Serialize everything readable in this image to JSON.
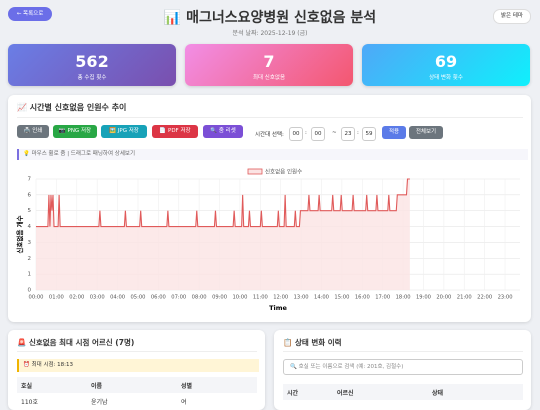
{
  "header": {
    "back_button": "← 목록으로",
    "title": "📊 매그너스요양병원 신호없음 분석",
    "subtitle": "분석 날짜: 2025-12-19 (금)",
    "theme_button": "밝은 테마"
  },
  "stats": [
    {
      "value": 562,
      "label": "총 수집 횟수"
    },
    {
      "value": 7,
      "label": "최대 신호없음"
    },
    {
      "value": 69,
      "label": "상태 변화 횟수"
    }
  ],
  "chart_panel": {
    "title": "📈 시간별 신호없음 인원수 추이",
    "buttons": [
      "🖨️ 인쇄",
      "📷 PNG 저장",
      "🖼️ JPG 저장",
      "📄 PDF 저장",
      "🔍 줌 리셋"
    ],
    "time_range": {
      "label": "시간대 선택:",
      "start_hour": "00",
      "colon": ":",
      "start_minute": "00",
      "separator": "~",
      "end_hour": "23",
      "end_minute": "59"
    },
    "apply_button": "적용",
    "reset_button": "전체보기",
    "hint": "💡 마우스 휠로 줌 | 드래그로 패닝하여 상세보기"
  },
  "chart_data": {
    "type": "line",
    "xlabel": "Time",
    "ylabel": "신호없음 개수",
    "legend": "top",
    "grid": true,
    "x": [
      "00:00",
      "00:35",
      "00:38",
      "00:41",
      "00:44",
      "00:47",
      "00:50",
      "00:53",
      "01:05",
      "01:08",
      "01:11",
      "03:05",
      "03:08",
      "03:11",
      "04:20",
      "04:23",
      "04:26",
      "05:05",
      "05:08",
      "05:11",
      "06:25",
      "06:28",
      "06:31",
      "07:50",
      "07:53",
      "07:56",
      "08:45",
      "08:48",
      "08:51",
      "09:40",
      "09:43",
      "09:46",
      "10:05",
      "10:08",
      "10:11",
      "10:25",
      "10:28",
      "10:31",
      "11:00",
      "11:03",
      "11:06",
      "11:50",
      "11:53",
      "11:56",
      "12:10",
      "12:13",
      "12:16",
      "12:40",
      "12:43",
      "12:46",
      "12:55",
      "12:58",
      "13:20",
      "13:23",
      "13:26",
      "13:50",
      "13:53",
      "13:56",
      "14:30",
      "14:33",
      "14:36",
      "14:55",
      "14:58",
      "15:01",
      "15:30",
      "15:33",
      "15:36",
      "16:10",
      "16:13",
      "16:16",
      "16:40",
      "16:43",
      "16:46",
      "17:15",
      "17:18",
      "17:21",
      "17:40",
      "17:43",
      "18:10",
      "18:13",
      "18:20"
    ],
    "series": [
      {
        "name": "신호없음 인원수",
        "color": "#e05a5a",
        "fill": "#fbe3e3",
        "values": [
          4,
          4,
          6,
          4,
          6,
          5,
          6,
          4,
          4,
          6,
          4,
          4,
          5,
          4,
          4,
          5,
          4,
          4,
          5,
          4,
          4,
          5,
          4,
          4,
          5,
          4,
          4,
          5,
          4,
          4,
          5,
          4,
          4,
          6,
          4,
          4,
          5,
          4,
          4,
          5,
          4,
          4,
          5,
          4,
          4,
          6,
          4,
          4,
          5,
          4,
          4,
          5,
          5,
          6,
          5,
          5,
          6,
          5,
          5,
          6,
          5,
          5,
          6,
          5,
          5,
          6,
          5,
          5,
          6,
          5,
          5,
          6,
          5,
          5,
          6,
          5,
          5,
          6,
          6,
          7,
          7
        ]
      }
    ],
    "xlim": [
      "00:00",
      "23:44"
    ],
    "xticks": [
      "00:00",
      "01:00",
      "02:00",
      "03:00",
      "04:00",
      "05:00",
      "06:00",
      "07:00",
      "08:00",
      "09:00",
      "10:00",
      "11:00",
      "12:00",
      "13:00",
      "14:00",
      "15:00",
      "16:00",
      "17:00",
      "18:00",
      "19:00",
      "20:00",
      "21:00",
      "22:00",
      "23:00"
    ],
    "ylim": [
      0,
      7
    ],
    "yticks": [
      0,
      1,
      2,
      3,
      4,
      5,
      6,
      7
    ]
  },
  "max_panel": {
    "title": "🚨 신호없음 최대 시점 어르신 (7명)",
    "max_time": "⏰ 최대 시점: 18:13",
    "headers": [
      "호실",
      "이름",
      "성별"
    ],
    "rows": [
      [
        "110호",
        "윤기남",
        "여"
      ]
    ]
  },
  "history_panel": {
    "title": "📋 상태 변화 이력",
    "search_placeholder": "🔍 호실 또는 이름으로 검색 (예: 201호, 김철수)",
    "headers": [
      "시간",
      "어르신",
      "상태"
    ]
  }
}
